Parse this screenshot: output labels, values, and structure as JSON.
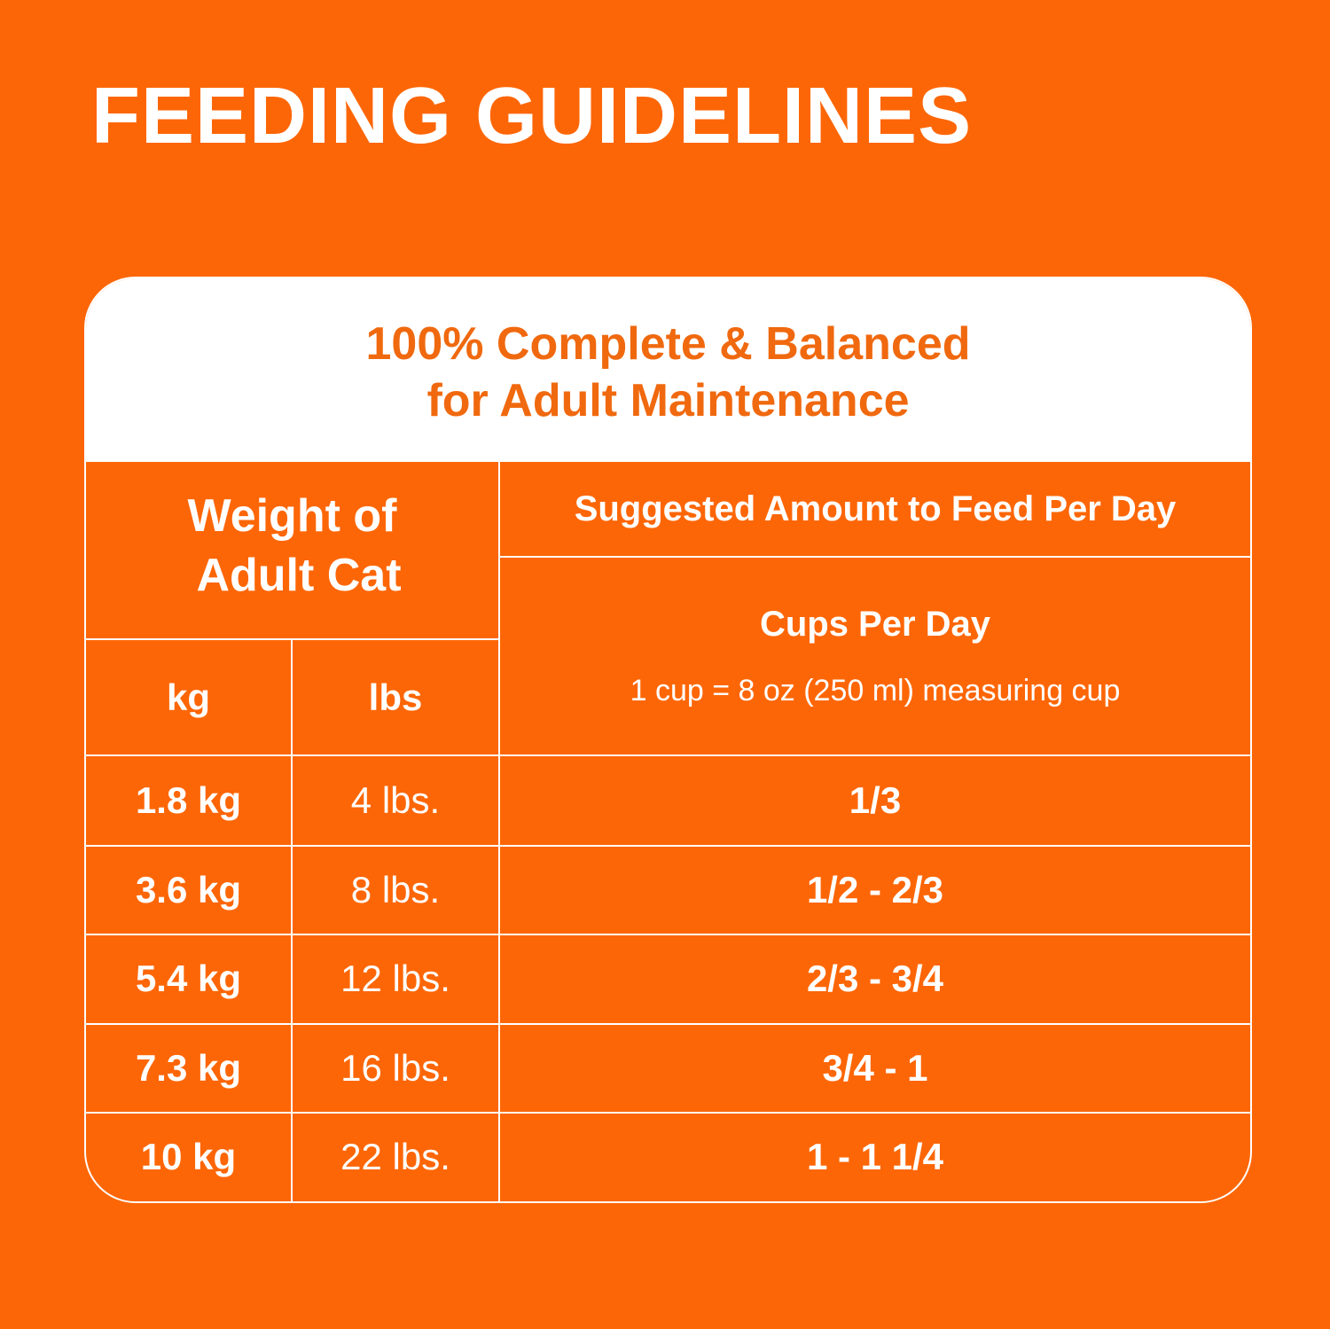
{
  "header": {
    "title": "FEEDING GUIDELINES"
  },
  "table": {
    "caption_lines": [
      "100% Complete & Balanced",
      "for Adult Maintenance"
    ],
    "weight_header_lines": [
      "Weight of",
      "Adult Cat"
    ],
    "amount_header": "Suggested Amount to Feed Per Day",
    "unit_headers": [
      "kg",
      "lbs"
    ],
    "cups_header": "Cups Per Day",
    "cups_note": "1 cup = 8 oz (250 ml) measuring cup",
    "rows": [
      [
        "1.8 kg",
        "4 lbs.",
        "1/3"
      ],
      [
        "3.6 kg",
        "8 lbs.",
        "1/2 - 2/3"
      ],
      [
        "5.4 kg",
        "12 lbs.",
        "2/3 - 3/4"
      ],
      [
        "7.3 kg",
        "16 lbs.",
        "3/4 - 1"
      ],
      [
        "10 kg",
        "22 lbs.",
        "1 - 1 1/4"
      ]
    ]
  }
}
